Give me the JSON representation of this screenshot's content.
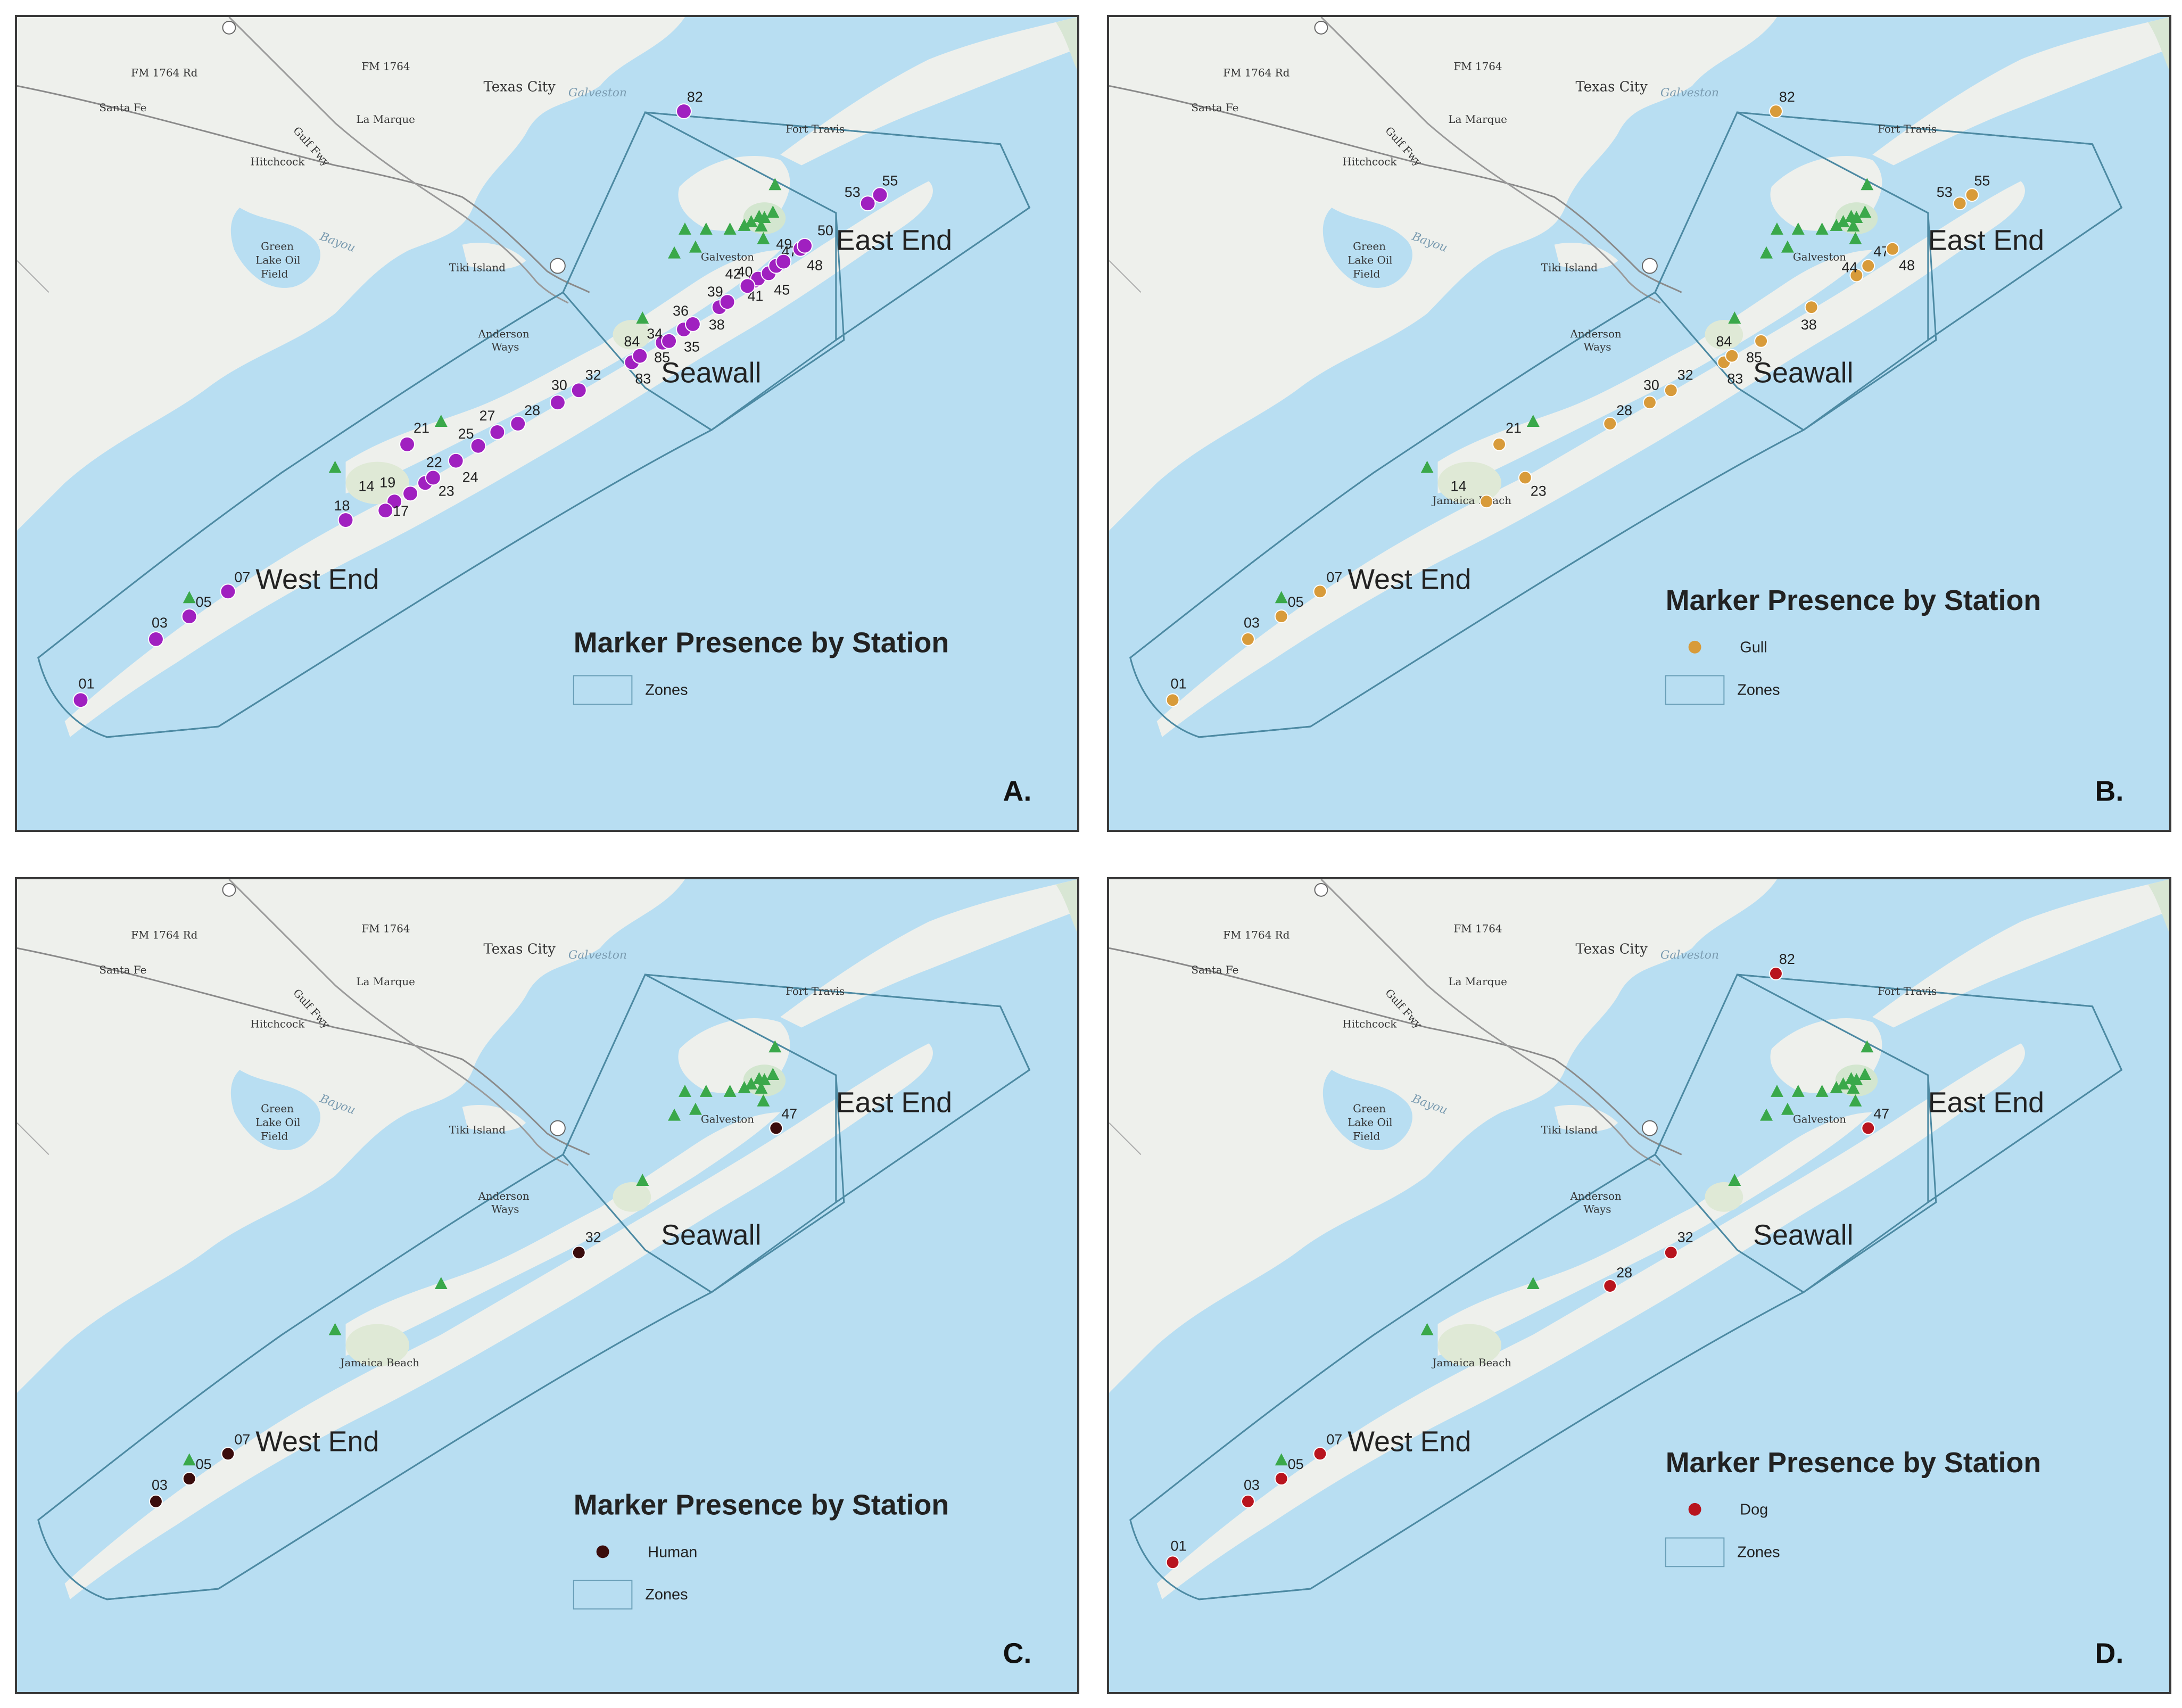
{
  "zone_labels": {
    "east": "East End",
    "seawall": "Seawall",
    "west": "West End"
  },
  "places": {
    "texas_city": "Texas City",
    "galveston_water": "Galveston",
    "fort_travis": "Fort Travis",
    "santa_fe": "Santa Fe",
    "la_marque": "La Marque",
    "hitchcock": "Hitchcock",
    "fm1764": "FM 1764",
    "fm1764b": "FM 1764 Rd",
    "green_lake_1": "Green",
    "green_lake_2": "Lake Oil",
    "green_lake_3": "Field",
    "tiki": "Tiki Island",
    "galveston_city": "Galveston",
    "anderson_1": "Anderson",
    "anderson_2": "Ways",
    "jamaica": "Jamaica Beach",
    "gulf_fwy": "Gulf Fwy",
    "bay": "Bayou"
  },
  "colors": {
    "water": "#b8def2",
    "land": "#eef0ec",
    "zone_line": "#4d8aa3",
    "triangle": "#3aa84a",
    "marker": "#a020c0",
    "gull": "#d89b3a",
    "human": "#3a0c0c",
    "dog": "#b8141e"
  },
  "panels": [
    {
      "letter": "A.",
      "legend_title": "Marker Presence by Station",
      "legend_items": [
        {
          "type": "zone",
          "label": "Zones"
        }
      ],
      "marker_color": "#a020c0",
      "stations": [
        "01",
        "03",
        "05",
        "07",
        "14",
        "17",
        "18",
        "19",
        "21",
        "22",
        "23",
        "24",
        "25",
        "27",
        "28",
        "30",
        "32",
        "34",
        "35",
        "36",
        "38",
        "39",
        "40",
        "41",
        "42",
        "45",
        "47",
        "48",
        "49",
        "50",
        "53",
        "55",
        "82",
        "83",
        "84",
        "85"
      ]
    },
    {
      "letter": "B.",
      "legend_title": "Marker Presence by Station",
      "legend_items": [
        {
          "type": "dot",
          "label": "Gull",
          "color": "#d89b3a"
        },
        {
          "type": "zone",
          "label": "Zones"
        }
      ],
      "marker_color": "#d89b3a",
      "stations": [
        "01",
        "03",
        "05",
        "07",
        "14",
        "21",
        "23",
        "28",
        "30",
        "32",
        "38",
        "44",
        "47",
        "48",
        "53",
        "55",
        "82",
        "83",
        "84",
        "85"
      ]
    },
    {
      "letter": "C.",
      "legend_title": "Marker Presence by Station",
      "legend_items": [
        {
          "type": "dot",
          "label": "Human",
          "color": "#3a0c0c"
        },
        {
          "type": "zone",
          "label": "Zones"
        }
      ],
      "marker_color": "#3a0c0c",
      "stations": [
        "03",
        "05",
        "07",
        "32",
        "47"
      ]
    },
    {
      "letter": "D.",
      "legend_title": "Marker Presence by Station",
      "legend_items": [
        {
          "type": "dot",
          "label": "Dog",
          "color": "#b8141e"
        },
        {
          "type": "zone",
          "label": "Zones"
        }
      ],
      "marker_color": "#b8141e",
      "stations": [
        "01",
        "03",
        "05",
        "07",
        "28",
        "32",
        "47",
        "82"
      ]
    }
  ]
}
